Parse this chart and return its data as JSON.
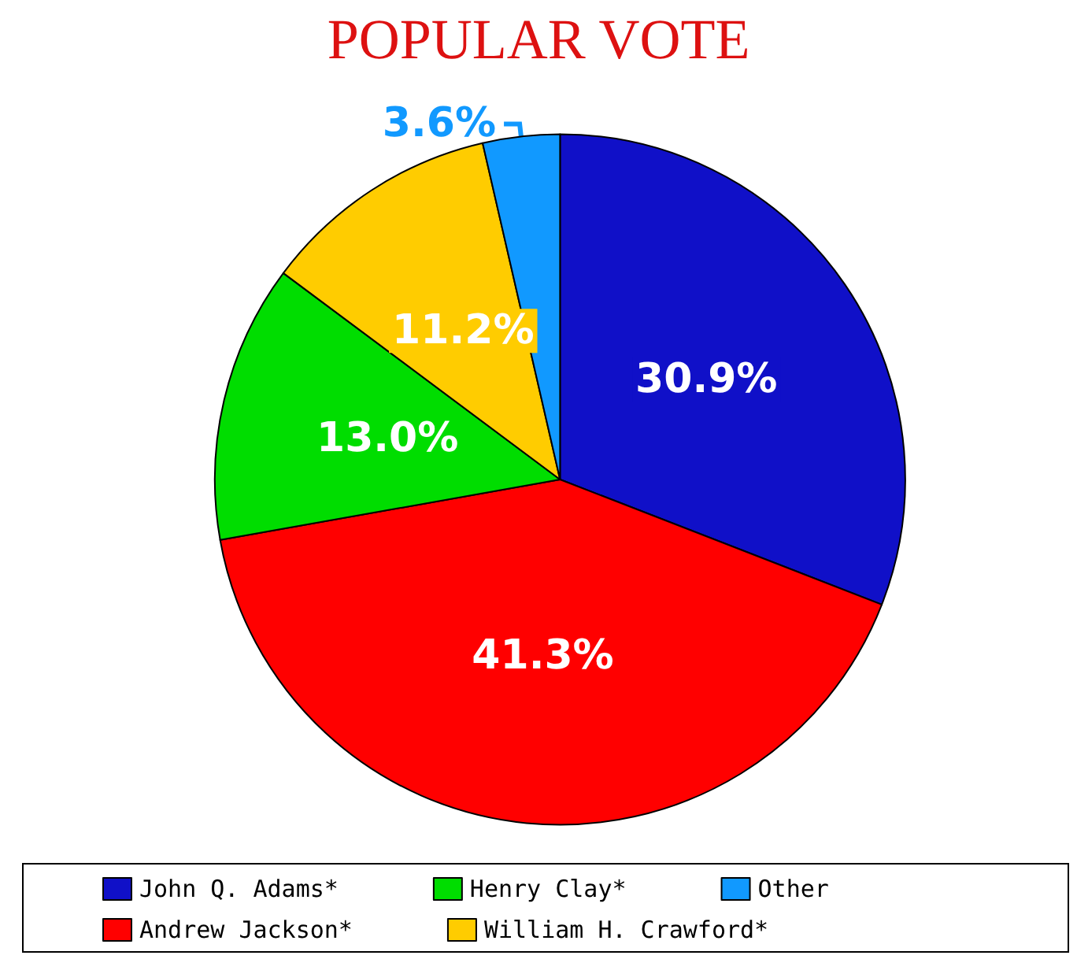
{
  "chart_data": {
    "type": "pie",
    "title": "POPULAR VOTE",
    "categories": [
      "John Q. Adams*",
      "Andrew Jackson*",
      "Henry Clay*",
      "William H. Crawford*",
      "Other"
    ],
    "values": [
      30.9,
      41.3,
      13.0,
      11.2,
      3.6
    ],
    "colors": [
      "#1010c8",
      "#ff0000",
      "#00dd00",
      "#ffcc00",
      "#1199ff"
    ],
    "value_labels": [
      "30.9%",
      "41.3%",
      "13.0%",
      "11.2%",
      "3.6%"
    ],
    "legend": "bottom"
  }
}
